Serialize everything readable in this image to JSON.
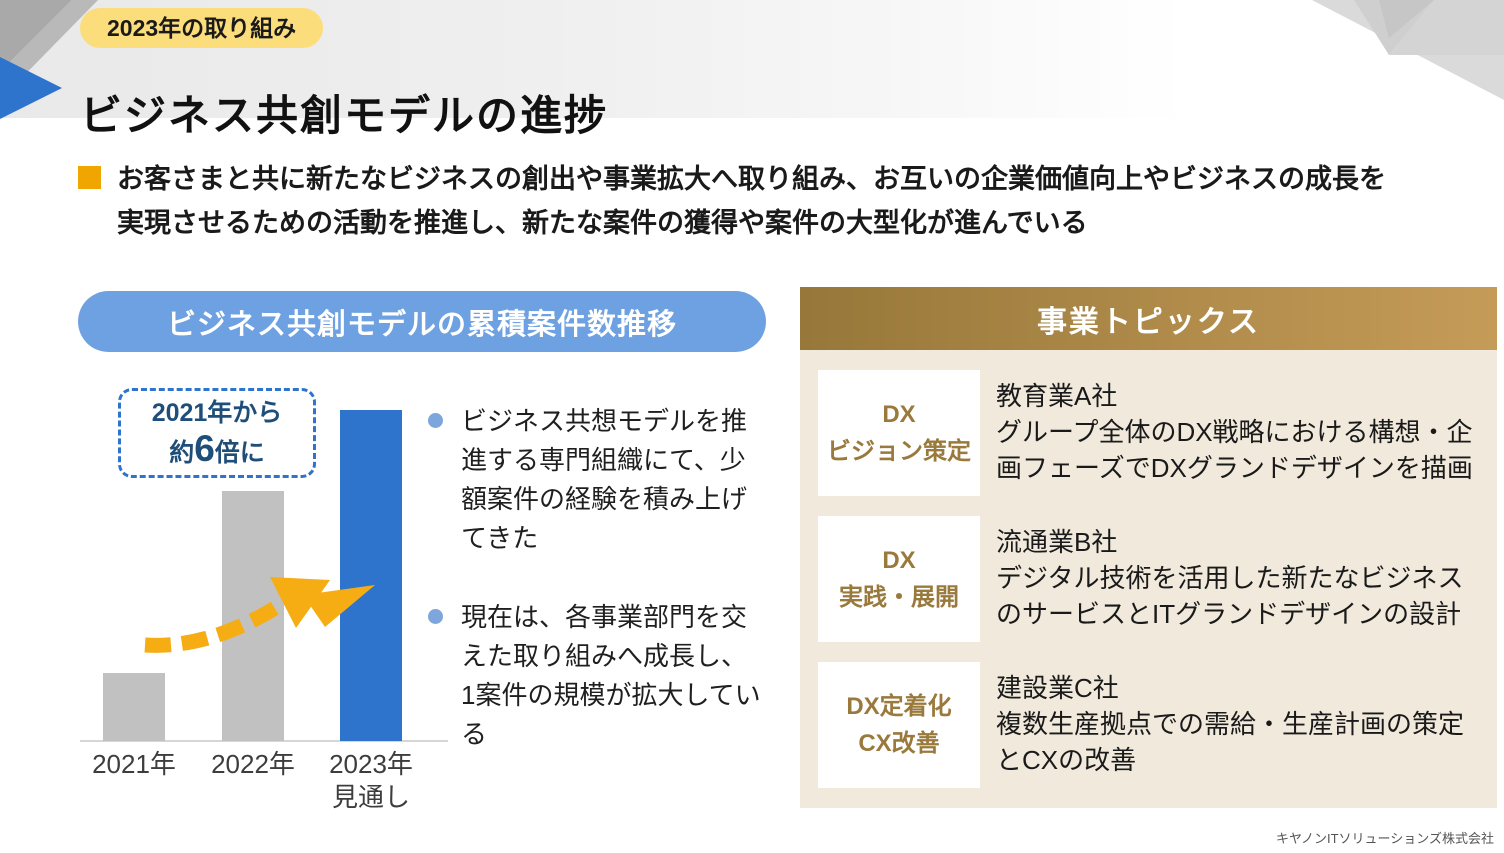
{
  "slide": {
    "badge": "2023年の取り組み",
    "title": "ビジネス共創モデルの進捗",
    "lead": "お客さまと共に新たなビジネスの創出や事業拡大へ取り組み、お互いの企業価値向上やビジネスの成長を実現させるための活動を推進し、新たな案件の獲得や案件の大型化が進んでいる",
    "footer": "キヤノンITソリューションズ株式会社"
  },
  "left_panel": {
    "header": "ビジネス共創モデルの累積案件数推移",
    "callout": {
      "line1": "2021年から",
      "prefix": "約",
      "big": "6",
      "suffix": "倍に"
    },
    "bullets": [
      "ビジネス共想モデルを推進する専門組織にて、少額案件の経験を積み上げてきた",
      "現在は、各事業部門を交えた取り組みへ成長し、1案件の規模が拡大している"
    ]
  },
  "right_panel": {
    "header": "事業トピックス",
    "topics": [
      {
        "label_line1": "DX",
        "label_line2": "ビジョン策定",
        "company": "教育業A社",
        "description": "グループ全体のDX戦略における構想・企画フェーズでDXグランドデザインを描画"
      },
      {
        "label_line1": "DX",
        "label_line2": "実践・展開",
        "company": "流通業B社",
        "description": "デジタル技術を活用した新たなビジネスのサービスとITグランドデザインの設計"
      },
      {
        "label_line1": "DX定着化",
        "label_line2": "CX改善",
        "company": "建設業C社",
        "description": "複数生産拠点での需給・生産計画の策定とCXの改善"
      }
    ]
  },
  "chart_data": {
    "type": "bar",
    "title": "ビジネス共創モデルの累積案件数推移",
    "categories": [
      "2021年",
      "2022年",
      "2023年"
    ],
    "category_sub": [
      "",
      "",
      "見通し"
    ],
    "values": [
      1,
      3.7,
      4.9
    ],
    "unit": "relative cumulative case count (no numeric axis shown)",
    "annotation": "2021年から約6倍に",
    "bar_colors": [
      "#c1c1c1",
      "#c1c1c1",
      "#2e73cc"
    ],
    "xlabel": "",
    "ylabel": "",
    "grid": false,
    "legend": false
  },
  "colors": {
    "accent_blue": "#2e73cc",
    "pill_blue": "#6ea1e1",
    "badge_yellow": "#fbdd7c",
    "bullet_orange": "#f0a500",
    "bullet_dot_blue": "#7da7dc",
    "gold_dark": "#97783a",
    "gold_light": "#c59b58",
    "panel_beige": "#f0e9dc",
    "topic_label_gold": "#9a7a3c",
    "arrow_gold": "#f6ad14",
    "callout_text_navy": "#1f4e79",
    "bar_gray": "#c1c1c1"
  }
}
